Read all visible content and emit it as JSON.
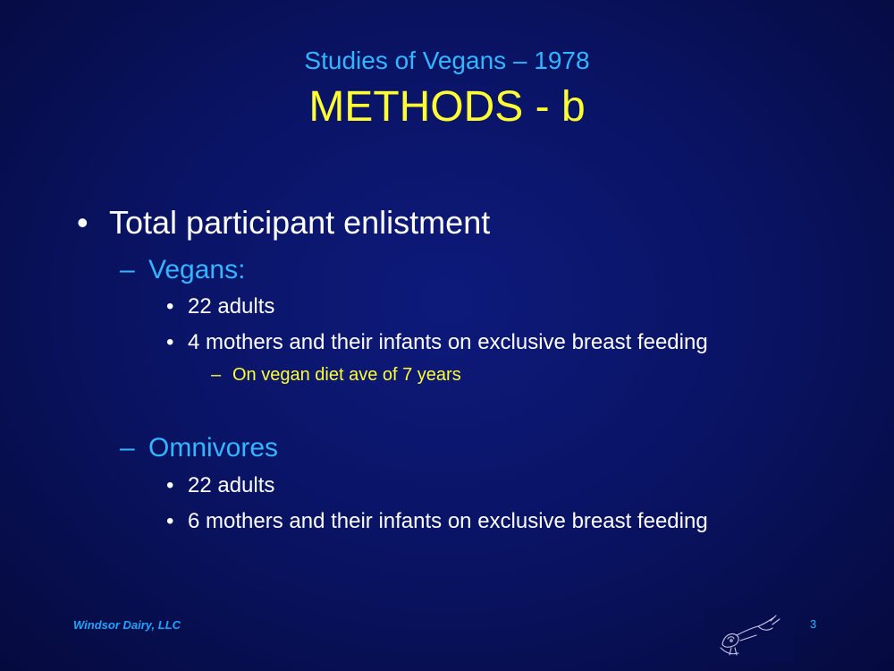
{
  "slide": {
    "subtitle": "Studies of Vegans – 1978",
    "title": "METHODS - b",
    "bullet_main": "Total participant enlistment",
    "vegans": {
      "label": "Vegans:",
      "items": [
        "22 adults",
        "4 mothers and their infants on exclusive breast feeding"
      ],
      "sub_note": "On vegan diet ave of 7 years"
    },
    "omnivores": {
      "label": "Omnivores",
      "items": [
        "22 adults",
        "6 mothers and their infants on exclusive breast feeding"
      ]
    },
    "markers": {
      "bullet": "•",
      "dash": "–"
    },
    "footer": "Windsor Dairy, LLC",
    "page_number": "3",
    "logo_icon": "cow-sketch-icon"
  },
  "colors": {
    "background": "#0a1466",
    "title": "#ffff33",
    "subtitle": "#33b5ff",
    "body_text": "#ffffff",
    "accent_text": "#ffff33"
  }
}
